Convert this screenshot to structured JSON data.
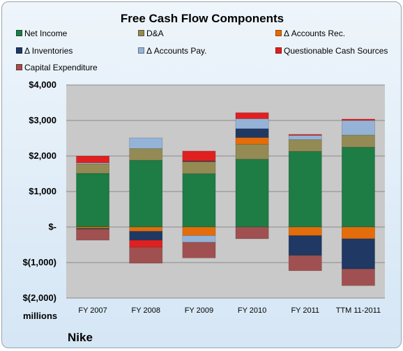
{
  "chart_data": {
    "type": "bar",
    "stacked": true,
    "title": "Free Cash Flow Components",
    "ylabel": "",
    "xlabel": "",
    "units_label": "millions",
    "company": "Nike",
    "ylim": [
      -2000,
      4000
    ],
    "y_ticks": [
      4000,
      3000,
      2000,
      1000,
      0,
      -1000,
      -2000
    ],
    "y_tick_labels": [
      "$4,000",
      "$3,000",
      "$2,000",
      "$1,000",
      "$-",
      "$(1,000)",
      "$(2,000)"
    ],
    "categories": [
      "FY 2007",
      "FY 2008",
      "FY 2009",
      "FY 2010",
      "FY 2011",
      "TTM 11-2011"
    ],
    "legend_placement": "top",
    "series": [
      {
        "name": "Net Income",
        "color": "#1e7c45",
        "values": [
          1510,
          1880,
          1500,
          1910,
          2130,
          2250
        ]
      },
      {
        "name": "D&A",
        "color": "#948a54",
        "values": [
          270,
          330,
          340,
          420,
          330,
          340
        ]
      },
      {
        "name": "Δ Accounts Rec.",
        "color": "#e46c0a",
        "values": [
          -40,
          -120,
          -240,
          190,
          -240,
          -330
        ]
      },
      {
        "name": "Δ Inventories",
        "color": "#1f3864",
        "values": [
          -20,
          -250,
          20,
          250,
          -560,
          -850
        ]
      },
      {
        "name": "Δ Accounts Pay.",
        "color": "#95b3d7",
        "values": [
          30,
          300,
          -190,
          280,
          120,
          410
        ]
      },
      {
        "name": "Questionable Cash Sources",
        "color": "#e02020",
        "values": [
          190,
          -200,
          280,
          170,
          30,
          40
        ]
      },
      {
        "name": "Capital Expenditure",
        "color": "#a05050",
        "values": [
          -310,
          -450,
          -440,
          -330,
          -430,
          -470
        ]
      }
    ]
  }
}
